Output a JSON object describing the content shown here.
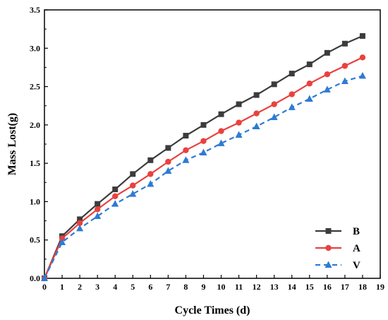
{
  "chart_data": {
    "type": "line",
    "title": "",
    "xlabel": "Cycle Times (d)",
    "ylabel": "Mass Lost(g)",
    "xlim": [
      0,
      19
    ],
    "ylim": [
      0,
      3.5
    ],
    "xticks": [
      "0",
      "1",
      "2",
      "3",
      "4",
      "5",
      "6",
      "7",
      "8",
      "9",
      "10",
      "11",
      "12",
      "13",
      "14",
      "15",
      "16",
      "17",
      "18",
      "19"
    ],
    "yticks": [
      "0.0",
      "0.5",
      "1.0",
      "1.5",
      "2.0",
      "2.5",
      "3.0",
      "3.5"
    ],
    "grid": false,
    "legend_position": "bottom-right",
    "x": [
      0,
      1,
      2,
      3,
      4,
      5,
      6,
      7,
      8,
      9,
      10,
      11,
      12,
      13,
      14,
      15,
      16,
      17,
      18
    ],
    "series": [
      {
        "name": "B",
        "color": "#3c3c3c",
        "marker": "square",
        "line_style": "solid",
        "values": [
          0.0,
          0.55,
          0.77,
          0.97,
          1.16,
          1.36,
          1.54,
          1.7,
          1.86,
          2.0,
          2.14,
          2.27,
          2.39,
          2.53,
          2.67,
          2.79,
          2.94,
          3.06,
          3.16
        ]
      },
      {
        "name": "A",
        "color": "#e8423f",
        "marker": "circle",
        "line_style": "solid",
        "values": [
          0.0,
          0.52,
          0.72,
          0.9,
          1.07,
          1.21,
          1.36,
          1.52,
          1.67,
          1.79,
          1.92,
          2.03,
          2.15,
          2.27,
          2.4,
          2.54,
          2.66,
          2.77,
          2.88
        ]
      },
      {
        "name": "V",
        "color": "#2e7bd4",
        "marker": "triangle",
        "line_style": "dashed",
        "values": [
          0.0,
          0.47,
          0.65,
          0.81,
          0.97,
          1.1,
          1.23,
          1.4,
          1.54,
          1.64,
          1.76,
          1.87,
          1.98,
          2.1,
          2.23,
          2.34,
          2.46,
          2.57,
          2.64
        ]
      }
    ]
  }
}
